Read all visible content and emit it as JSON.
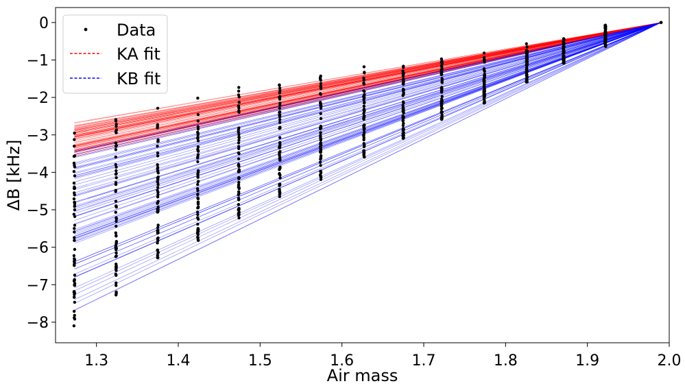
{
  "chart_data": {
    "type": "scatter",
    "title": "",
    "xlabel": "Air mass",
    "ylabel": "ΔB [kHz]",
    "xlim": [
      1.25,
      2.0
    ],
    "ylim": [
      -8.55,
      0.4
    ],
    "xticks": [
      1.3,
      1.4,
      1.5,
      1.6,
      1.7,
      1.8,
      1.9,
      2.0
    ],
    "xtick_labels": [
      "1.3",
      "1.4",
      "1.5",
      "1.6",
      "1.7",
      "1.8",
      "1.9",
      "2.0"
    ],
    "yticks": [
      0,
      -1,
      -2,
      -3,
      -4,
      -5,
      -6,
      -7,
      -8
    ],
    "ytick_labels": [
      "0",
      "−1",
      "−2",
      "−3",
      "−4",
      "−5",
      "−6",
      "−7",
      "−8"
    ],
    "reference_airmass": 1.99,
    "airmass_columns": [
      1.273,
      1.324,
      1.375,
      1.424,
      1.474,
      1.524,
      1.574,
      1.627,
      1.675,
      1.722,
      1.774,
      1.826,
      1.871,
      1.922
    ],
    "column_ranges": [
      [
        -8.2,
        -2.6
      ],
      [
        -7.3,
        -2.4
      ],
      [
        -6.4,
        -2.2
      ],
      [
        -5.85,
        -1.9
      ],
      [
        -5.3,
        -1.7
      ],
      [
        -4.7,
        -1.55
      ],
      [
        -4.2,
        -1.35
      ],
      [
        -3.65,
        -1.15
      ],
      [
        -3.15,
        -1.05
      ],
      [
        -2.6,
        -0.9
      ],
      [
        -2.15,
        -0.75
      ],
      [
        -1.6,
        -0.55
      ],
      [
        -1.1,
        -0.38
      ],
      [
        -0.65,
        -0.05
      ]
    ],
    "points_per_column": 60,
    "series": [
      {
        "name": "Data",
        "marker": "dot",
        "color": "#000000"
      },
      {
        "name": "KA fit",
        "style": "dashed",
        "color": "#ff0000",
        "slope_range": [
          3.72,
          5.0
        ],
        "line_count": 70
      },
      {
        "name": "KB fit",
        "style": "dashed",
        "color": "#0000ff",
        "slope_range": [
          4.8,
          10.75
        ],
        "line_count": 80
      }
    ],
    "legend": {
      "position": "upper-left",
      "entries": [
        "Data",
        "KA fit",
        "KB fit"
      ]
    },
    "grid": false
  }
}
